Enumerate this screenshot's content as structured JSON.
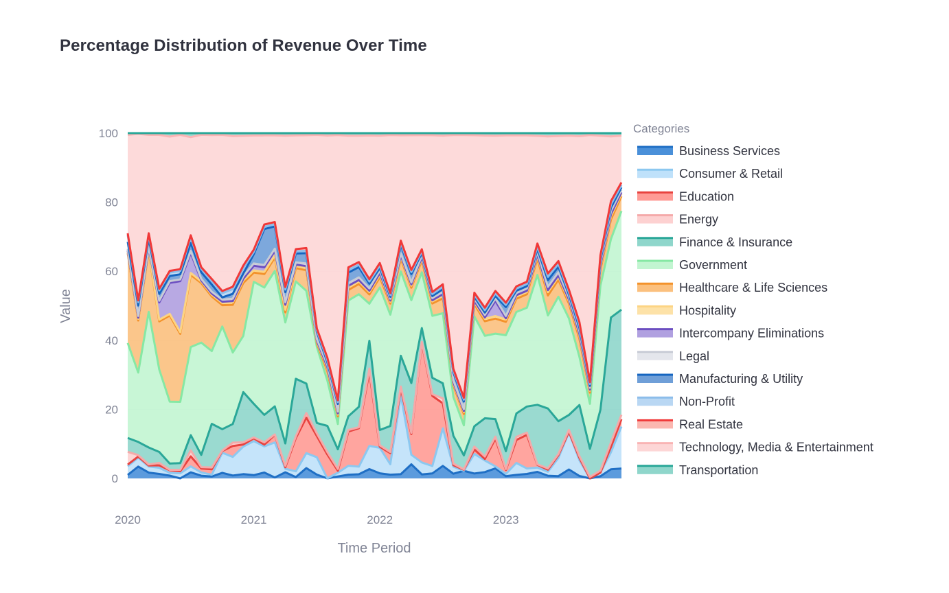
{
  "chart_data": {
    "type": "area",
    "stacked": true,
    "normalized_percent": true,
    "title": "Percentage Distribution of Revenue Over Time",
    "xlabel": "Time Period",
    "ylabel": "Value",
    "ylim": [
      0,
      100
    ],
    "yticks": [
      "0",
      "20",
      "40",
      "60",
      "80",
      "100"
    ],
    "x_range": [
      "2020-01",
      "2023-12"
    ],
    "xticks": [
      {
        "label": "2020",
        "date": "2020-01"
      },
      {
        "label": "2021",
        "date": "2021-01"
      },
      {
        "label": "2022",
        "date": "2022-01"
      },
      {
        "label": "2023",
        "date": "2023-01"
      }
    ],
    "grid": true,
    "legend_title": "Categories",
    "legend_position": "right",
    "x": [
      "2020-01",
      "2020-02",
      "2020-03",
      "2020-04",
      "2020-05",
      "2020-06",
      "2020-07",
      "2020-08",
      "2020-09",
      "2020-10",
      "2020-11",
      "2020-12",
      "2021-01",
      "2021-02",
      "2021-03",
      "2021-04",
      "2021-05",
      "2021-06",
      "2021-07",
      "2021-08",
      "2021-09",
      "2021-10",
      "2021-11",
      "2021-12",
      "2022-01",
      "2022-02",
      "2022-03",
      "2022-04",
      "2022-05",
      "2022-06",
      "2022-07",
      "2022-08",
      "2022-09",
      "2022-10",
      "2022-11",
      "2022-12",
      "2023-01",
      "2023-02",
      "2023-03",
      "2023-04",
      "2023-05",
      "2023-06",
      "2023-07",
      "2023-08",
      "2023-09",
      "2023-10",
      "2023-11",
      "2023-12"
    ],
    "series": [
      {
        "name": "Business Services",
        "color": "#1f6fc5",
        "fill": "#4a90d9",
        "values": [
          1,
          3.4,
          1.7,
          1.3,
          0.8,
          0,
          1.5,
          0.8,
          0.5,
          1.3,
          0.6,
          0.8,
          0.7,
          1.3,
          0.2,
          1.2,
          0.3,
          2,
          1.1,
          0,
          0.5,
          0.7,
          0.8,
          2,
          1,
          1,
          1,
          3.4,
          1,
          1.2,
          2.5,
          1.2,
          2,
          1.2,
          1.3,
          2,
          0.5,
          0.8,
          1,
          1.2,
          0.4,
          0.4,
          1.8,
          0.4,
          0,
          0.4,
          1.4,
          2
        ]
      },
      {
        "name": "Consumer & Retail",
        "color": "#8cc8f0",
        "fill": "#bfe1fa",
        "values": [
          2.5,
          2.6,
          1.8,
          1.8,
          0.8,
          1.5,
          1.5,
          1,
          0.5,
          4.7,
          3.9,
          5.2,
          7.4,
          5.8,
          7.9,
          0.7,
          1.3,
          2.9,
          5,
          0,
          1,
          1.7,
          1.5,
          5,
          5,
          2.8,
          18.7,
          2.3,
          3,
          1.8,
          7.5,
          1.8,
          0,
          4.8,
          2.4,
          0.4,
          0.5,
          2.7,
          1.2,
          0.8,
          0.6,
          3.2,
          7.5,
          2.6,
          0,
          0.7,
          2.6,
          8.5
        ]
      },
      {
        "name": "Education",
        "color": "#e8433f",
        "fill": "#ff9b95",
        "values": [
          0.5,
          0.3,
          0.3,
          0.7,
          0.8,
          0.6,
          2.5,
          1.2,
          1.5,
          0.4,
          2.3,
          0.4,
          0.6,
          0.4,
          1.7,
          0.3,
          7.5,
          6.9,
          6.1,
          5,
          0.5,
          6.5,
          7.5,
          16,
          0.2,
          3,
          1.5,
          5,
          30,
          17,
          5,
          0.4,
          0.3,
          1.1,
          0.3,
          5.5,
          0.9,
          5.2,
          7.5,
          0.5,
          0.3,
          0.5,
          0.1,
          0.4,
          0,
          0,
          0.8,
          1.5
        ]
      },
      {
        "name": "Energy",
        "color": "#f4aaaa",
        "fill": "#fdd1d1",
        "values": [
          3.7,
          0.4,
          0.3,
          0.7,
          0.1,
          0.4,
          1.5,
          0.4,
          0.5,
          0.1,
          0.7,
          0.4,
          0.2,
          0.5,
          0.1,
          0.3,
          0.4,
          0.9,
          0.8,
          0.5,
          0.5,
          0.3,
          0.2,
          0.7,
          0.3,
          0.3,
          0.6,
          0.3,
          0.3,
          0.4,
          1,
          0.4,
          0.1,
          0.7,
          0.5,
          0.4,
          0.2,
          0.7,
          0.5,
          0.1,
          0.2,
          0.2,
          0.4,
          0.3,
          0.4,
          0.4,
          0.7,
          0.9
        ]
      },
      {
        "name": "Finance & Insurance",
        "color": "#2aa798",
        "fill": "#8fd6cb",
        "values": [
          4,
          3.8,
          5,
          3.2,
          1.8,
          2,
          3.8,
          3.7,
          12,
          5,
          3.9,
          9.5,
          7.3,
          6.1,
          6.3,
          4.4,
          13,
          5.7,
          3,
          5.5,
          5.2,
          2.6,
          4,
          6,
          3,
          7,
          7.3,
          12,
          3.5,
          4,
          3,
          7.2,
          3.7,
          5,
          7.9,
          3.5,
          4,
          5.3,
          5.8,
          11,
          9,
          5.8,
          3,
          8.5,
          7.5,
          11.6,
          19.1,
          21.3
        ]
      },
      {
        "name": "Government",
        "color": "#86e8a4",
        "fill": "#c2f5d1",
        "values": [
          27.5,
          20,
          40,
          24,
          18,
          18,
          22,
          34,
          20,
          24,
          15,
          10.6,
          26.5,
          28.3,
          30.5,
          23.9,
          22,
          18,
          22,
          9.5,
          6.7,
          22,
          22,
          8,
          28,
          30,
          20,
          20,
          14,
          15,
          14,
          10,
          8,
          27,
          17,
          17,
          26,
          23,
          22,
          24,
          14,
          22,
          19.5,
          8,
          12,
          23.7,
          12,
          20
        ]
      },
      {
        "name": "Healthcare & Life Sciences",
        "color": "#f3922b",
        "fill": "#fbc07e",
        "values": [
          26,
          15,
          18,
          14,
          25,
          20,
          18,
          18,
          15,
          5,
          10,
          10,
          2,
          3,
          3,
          2,
          3,
          4,
          1,
          2,
          2,
          2,
          2,
          2,
          2,
          3,
          3,
          3,
          3,
          3,
          3,
          3,
          3,
          3,
          3,
          3,
          3,
          3,
          3,
          3,
          3,
          3,
          3,
          3,
          3,
          3,
          3,
          3
        ]
      },
      {
        "name": "Hospitality",
        "color": "#fcd484",
        "fill": "#fde2a8",
        "values": [
          0.5,
          0.5,
          0.5,
          0.5,
          0.5,
          0.5,
          0.5,
          0.5,
          0.5,
          0.5,
          0.5,
          0.5,
          0.5,
          0.5,
          0.5,
          0.5,
          0.5,
          0.5,
          0.5,
          0.5,
          0.5,
          0.5,
          0.5,
          0.5,
          0.5,
          0.5,
          0.5,
          0.5,
          0.5,
          0.5,
          0.5,
          0.5,
          0.5,
          0.5,
          0.5,
          0.5,
          0.5,
          0.5,
          0.5,
          0.5,
          0.5,
          0.5,
          0.5,
          0.5,
          0.5,
          0.5,
          0.5,
          0.5
        ]
      },
      {
        "name": "Intercompany Eliminations",
        "color": "#6c4fc1",
        "fill": "#b0a0e0",
        "values": [
          0.3,
          0.3,
          0.3,
          5,
          9,
          15,
          5,
          0.3,
          0.3,
          0.3,
          0.3,
          0.3,
          1,
          1,
          1,
          1,
          0.3,
          0.3,
          0.3,
          0.3,
          0.3,
          0.3,
          0.3,
          0.3,
          0.3,
          0.3,
          0.3,
          0.3,
          0.3,
          0.3,
          0.3,
          0.3,
          0.3,
          0.3,
          0.3,
          3,
          0.3,
          0.3,
          0.3,
          0.3,
          0.3,
          0.3,
          0.3,
          0.3,
          0.3,
          0.3,
          0.3,
          0.3
        ]
      },
      {
        "name": "Legal",
        "color": "#c8ccd6",
        "fill": "#e4e6ec",
        "values": [
          0.5,
          0.5,
          0.5,
          0.5,
          0.5,
          0.5,
          0.5,
          0.5,
          0.5,
          0.5,
          0.5,
          0.5,
          0.5,
          0.5,
          0.5,
          0.5,
          0.5,
          0.5,
          0.5,
          0.5,
          0.5,
          0.5,
          0.5,
          0.5,
          0.5,
          0.5,
          0.5,
          0.5,
          0.5,
          0.5,
          0.5,
          0.5,
          0.5,
          0.5,
          0.5,
          0.5,
          0.5,
          0.5,
          0.5,
          0.5,
          0.5,
          0.5,
          0.5,
          0.5,
          0.5,
          0.5,
          0.5,
          0.5
        ]
      },
      {
        "name": "Manufacturing & Utility",
        "color": "#1565c0",
        "fill": "#6f9fd8",
        "values": [
          2,
          3,
          2.4,
          2,
          1.5,
          1.5,
          2,
          2,
          2,
          0.5,
          1,
          0.5,
          2,
          8,
          5,
          2,
          2,
          2,
          2,
          0.5,
          2,
          2,
          2,
          1,
          0.5,
          0.5,
          2,
          2,
          0.5,
          0.5,
          0.5,
          2,
          2,
          0.5,
          0.5,
          0.5,
          2,
          0.5,
          0.5,
          0.5,
          1,
          1,
          0.5,
          0.5,
          0.5,
          0.5,
          0.5,
          0.5
        ]
      },
      {
        "name": "Non-Profit",
        "color": "#8cbdea",
        "fill": "#b9d7f3",
        "values": [
          2,
          1,
          1,
          1,
          1,
          1,
          1.4,
          1,
          1,
          1,
          1,
          1,
          0.5,
          0.5,
          0.5,
          0.5,
          0.5,
          0.5,
          0.5,
          0.5,
          0.5,
          0.5,
          0.5,
          0.5,
          0.5,
          0.5,
          0.5,
          0.5,
          0.5,
          0.5,
          0.5,
          0.5,
          0.5,
          0.5,
          0.5,
          0.5,
          0.5,
          0.5,
          0.5,
          0.5,
          0.5,
          0.5,
          0.5,
          0.5,
          0.5,
          0.5,
          0.5,
          0.5
        ]
      },
      {
        "name": "Real Estate",
        "color": "#f03838",
        "fill": "#fbb7b0",
        "values": [
          0.5,
          0.5,
          0.5,
          0.5,
          0.5,
          0.5,
          0.5,
          0.5,
          0.5,
          0.5,
          0.5,
          0.5,
          0.5,
          0.5,
          0.5,
          0.5,
          0.5,
          0.5,
          0.5,
          0.5,
          0.5,
          0.5,
          0.5,
          0.5,
          0.5,
          0.5,
          0.5,
          0.5,
          0.5,
          0.5,
          0.5,
          0.5,
          0.5,
          0.5,
          0.5,
          0.5,
          0.5,
          0.5,
          0.5,
          0.5,
          0.5,
          0.5,
          0.5,
          0.5,
          0.5,
          0.5,
          0.5,
          0.5
        ]
      },
      {
        "name": "Technology, Media & Entertainment",
        "color": "#f9b4b4",
        "fill": "#fdd6d6",
        "values": [
          28.5,
          48,
          29,
          44.8,
          39,
          39.5,
          24.5,
          40.1,
          39.6,
          36.5,
          31.6,
          24.5,
          24.8,
          19.8,
          19.5,
          29.9,
          25.7,
          21.9,
          55.9,
          46.5,
          70.2,
          25,
          24.7,
          31,
          25,
          42.6,
          25,
          32.5,
          28.7,
          38,
          29.7,
          60.2,
          69.8,
          38.7,
          35.5,
          30.9,
          37.5,
          34.2,
          32.6,
          19.9,
          20.6,
          22.1,
          31.1,
          30.9,
          66,
          22.8,
          9.9,
          9.5
        ]
      },
      {
        "name": "Transportation",
        "color": "#2aa798",
        "fill": "#8fd6cb",
        "values": [
          0.5,
          0.2,
          0.5,
          0.5,
          1,
          0.5,
          1,
          0.5,
          0.5,
          0.4,
          0.6,
          0.5,
          0.5,
          0.5,
          0.5,
          0.5,
          0.5,
          0.4,
          0.5,
          0.5,
          0.5,
          0.5,
          0.5,
          0.5,
          0.5,
          0.5,
          0.5,
          0.5,
          0.5,
          0.5,
          0.5,
          0.5,
          0.5,
          0.5,
          0.5,
          0.5,
          0.5,
          0.5,
          0.5,
          0.5,
          0.5,
          0.5,
          0.5,
          0.5,
          0.5,
          0.5,
          0.5,
          0.5
        ]
      }
    ]
  }
}
